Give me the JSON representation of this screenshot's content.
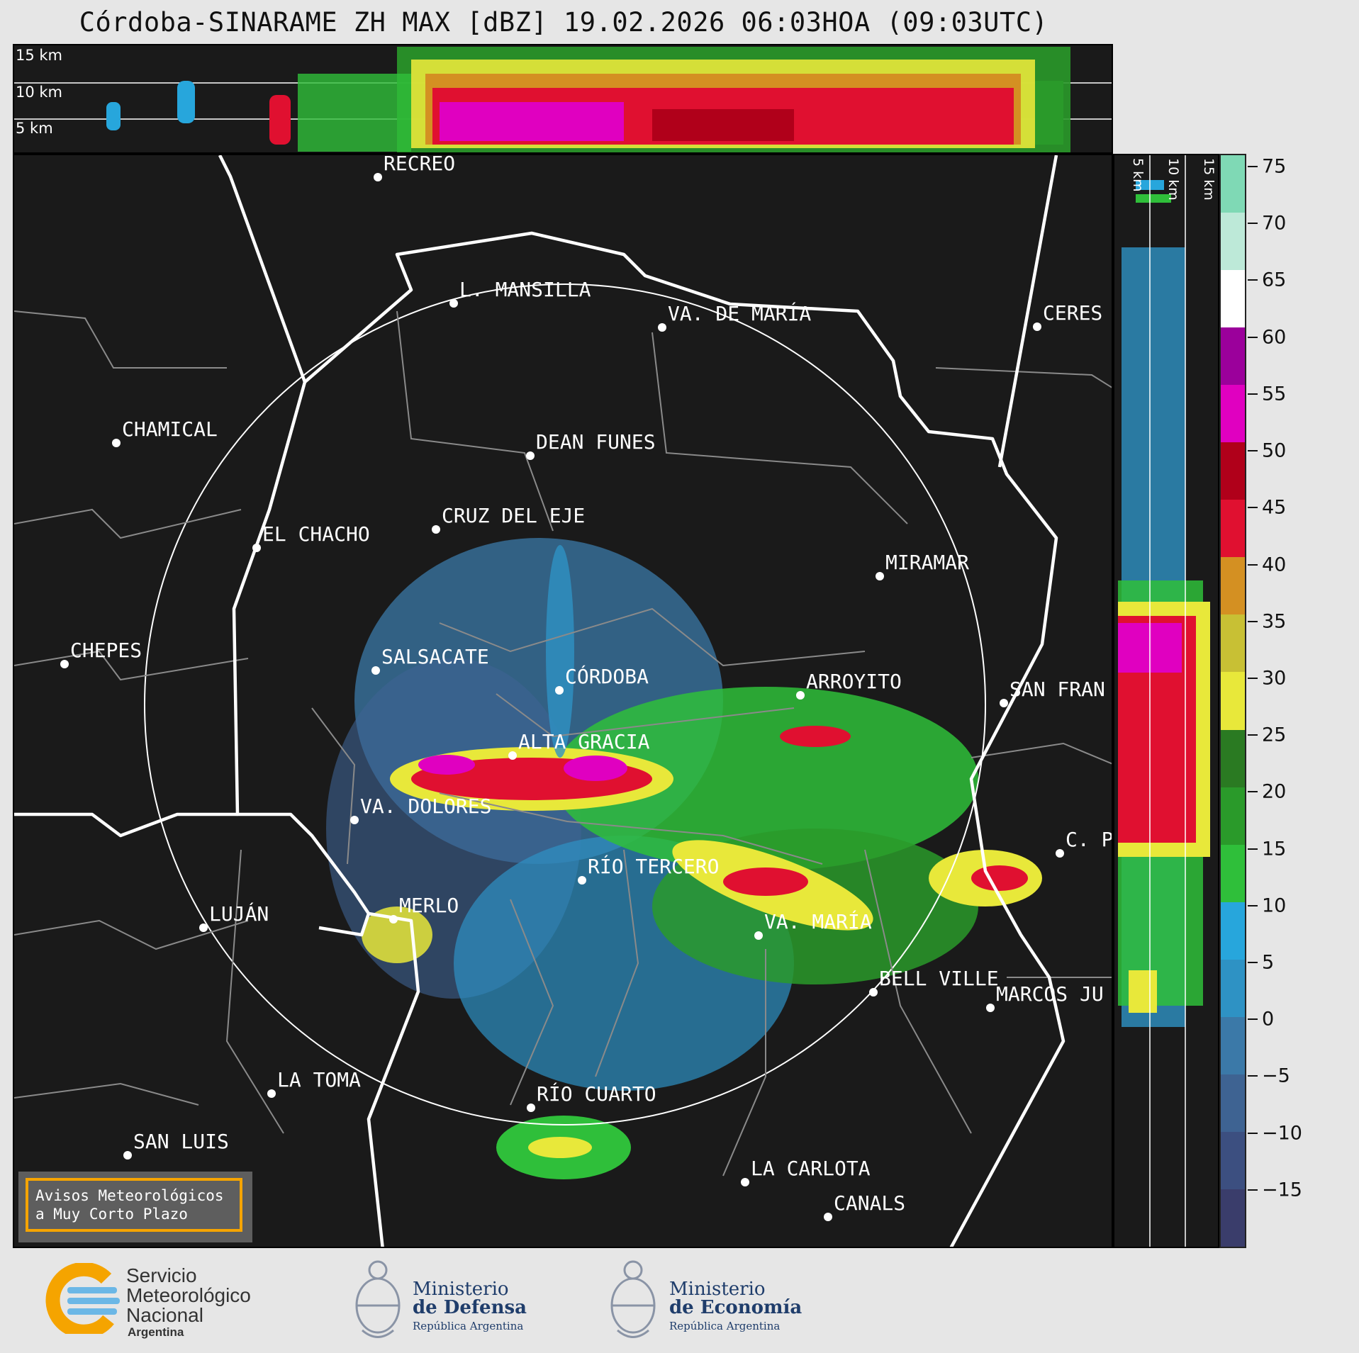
{
  "title": "Córdoba-SINARAME ZH MAX [dBZ] 19.02.2026 06:03HOA (09:03UTC)",
  "top_panel": {
    "levels": [
      "15 km",
      "10 km",
      "5 km"
    ]
  },
  "side_panel": {
    "levels": [
      "5 km",
      "10 km",
      "15 km"
    ]
  },
  "cities": [
    {
      "name": "RECREO"
    },
    {
      "name": "L. MANSILLA"
    },
    {
      "name": "VA. DE MARÍA"
    },
    {
      "name": "CERES"
    },
    {
      "name": "CHAMICAL"
    },
    {
      "name": "DEAN FUNES"
    },
    {
      "name": "CRUZ DEL EJE"
    },
    {
      "name": "EL CHACHO"
    },
    {
      "name": "MIRAMAR"
    },
    {
      "name": "CHEPES"
    },
    {
      "name": "SALSACATE"
    },
    {
      "name": "CÓRDOBA"
    },
    {
      "name": "ARROYITO"
    },
    {
      "name": "SAN FRAN"
    },
    {
      "name": "ALTA GRACIA"
    },
    {
      "name": "VA. DOLORES"
    },
    {
      "name": "C. P"
    },
    {
      "name": "RÍO TERCERO"
    },
    {
      "name": "MERLO"
    },
    {
      "name": "LUJÁN"
    },
    {
      "name": "VA. MARÍA"
    },
    {
      "name": "BELL VILLE"
    },
    {
      "name": "MARCOS JU"
    },
    {
      "name": "LA TOMA"
    },
    {
      "name": "RÍO CUARTO"
    },
    {
      "name": "SAN LUIS"
    },
    {
      "name": "LA CARLOTA"
    },
    {
      "name": "CANALS"
    }
  ],
  "colorbar": {
    "unit": "dBZ",
    "range": [
      -20,
      76
    ],
    "ticks": [
      "75",
      "70",
      "65",
      "60",
      "55",
      "50",
      "45",
      "40",
      "35",
      "30",
      "25",
      "20",
      "15",
      "10",
      "5",
      "0",
      "−5",
      "−10",
      "−15"
    ],
    "colors": [
      "#3a3d6b",
      "#3c4f80",
      "#3e6392",
      "#3b79a8",
      "#2e92c4",
      "#27a6dc",
      "#2fbf3a",
      "#2a9a2a",
      "#2a7a22",
      "#e8e83a",
      "#c8c034",
      "#d49022",
      "#e01030",
      "#b0001a",
      "#e000c0",
      "#9b009b",
      "#ffffff",
      "#bde9d8",
      "#7fd9b5"
    ]
  },
  "warning": {
    "line1": "Avisos Meteorológicos",
    "line2": "a Muy Corto Plazo"
  },
  "logos": {
    "smn": {
      "line1": "Servicio",
      "line2": "Meteorológico",
      "line3": "Nacional",
      "line4": "Argentina"
    },
    "defensa": {
      "line1": "Ministerio",
      "line2": "de Defensa",
      "line3": "República Argentina"
    },
    "economia": {
      "line1": "Ministerio",
      "line2": "de Economía",
      "line3": "República Argentina"
    }
  }
}
